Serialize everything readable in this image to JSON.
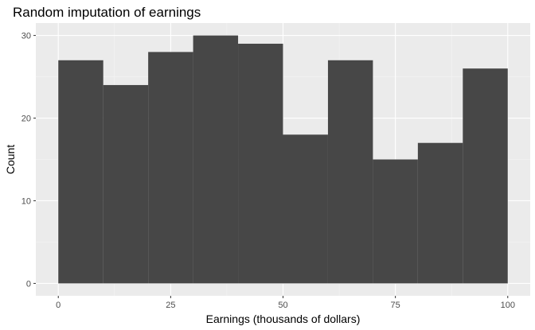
{
  "colors": {
    "panel_background": "#ebebeb",
    "grid_major": "#ffffff",
    "grid_minor": "#f5f5f5",
    "bar_fill": "#474747",
    "tick_color": "#333333"
  },
  "chart_data": {
    "type": "bar",
    "title": "Random imputation of earnings",
    "xlabel": "Earnings (thousands of dollars)",
    "ylabel": "Count",
    "bins": [
      {
        "start": 0,
        "end": 10,
        "count": 27
      },
      {
        "start": 10,
        "end": 20,
        "count": 24
      },
      {
        "start": 20,
        "end": 30,
        "count": 28
      },
      {
        "start": 30,
        "end": 40,
        "count": 30
      },
      {
        "start": 40,
        "end": 50,
        "count": 29
      },
      {
        "start": 50,
        "end": 60,
        "count": 18
      },
      {
        "start": 60,
        "end": 70,
        "count": 27
      },
      {
        "start": 70,
        "end": 80,
        "count": 15
      },
      {
        "start": 80,
        "end": 90,
        "count": 17
      },
      {
        "start": 90,
        "end": 100,
        "count": 26
      }
    ],
    "xlim": [
      -5,
      105
    ],
    "ylim": [
      -1.5,
      31.5
    ],
    "x_ticks": [
      0,
      25,
      50,
      75,
      100
    ],
    "x_tick_labels": [
      "0",
      "25",
      "50",
      "75",
      "100"
    ],
    "y_ticks": [
      0,
      10,
      20,
      30
    ],
    "y_tick_labels": [
      "0",
      "10",
      "20",
      "30"
    ],
    "x_minor_ticks": [
      12.5,
      37.5,
      62.5,
      87.5
    ],
    "y_minor_ticks": [
      5,
      15,
      25
    ],
    "grid": true,
    "legend": false
  }
}
